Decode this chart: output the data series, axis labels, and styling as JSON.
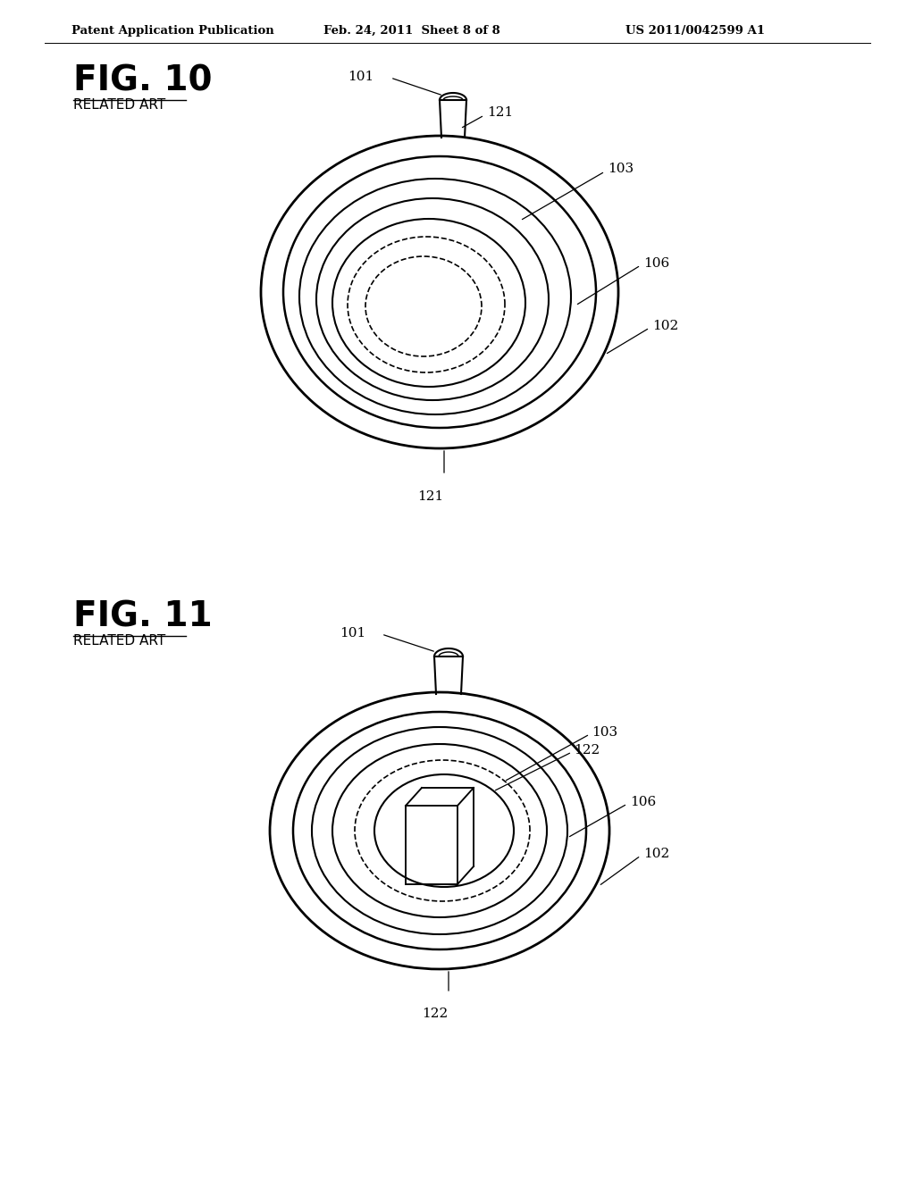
{
  "bg_color": "#ffffff",
  "header_text": "Patent Application Publication",
  "header_date": "Feb. 24, 2011  Sheet 8 of 8",
  "header_patent": "US 2011/0042599 A1",
  "fig10_title": "FIG. 10",
  "fig10_subtitle": "RELATED ART",
  "fig11_title": "FIG. 11",
  "fig11_subtitle": "RELATED ART",
  "line_color": "#000000",
  "line_width": 1.5
}
